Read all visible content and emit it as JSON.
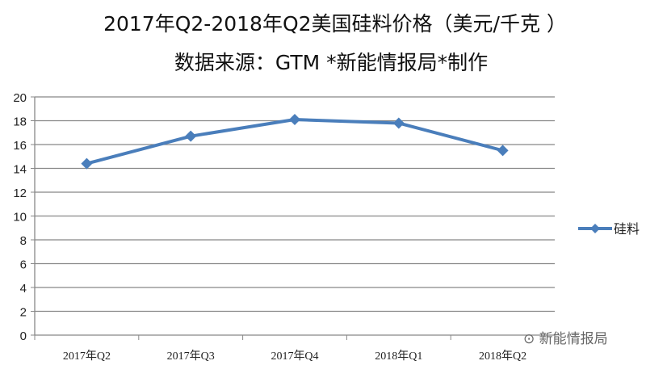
{
  "chart_data": {
    "type": "line",
    "title": "2017年Q2-2018年Q2美国硅料价格（美元/千克 ）",
    "subtitle": "数据来源：GTM    *新能情报局*制作",
    "xlabel": "",
    "ylabel": "",
    "categories": [
      "2017年Q2",
      "2017年Q3",
      "2017年Q4",
      "2018年Q1",
      "2018年Q2"
    ],
    "series": [
      {
        "name": "硅料",
        "values": [
          14.4,
          16.7,
          18.1,
          17.8,
          15.5
        ],
        "color": "#4a7ebb"
      }
    ],
    "ylim": [
      0,
      20
    ],
    "yticks": [
      0,
      2,
      4,
      6,
      8,
      10,
      12,
      14,
      16,
      18,
      20
    ],
    "grid": true,
    "legend": "right"
  },
  "watermark": "新能情报局"
}
